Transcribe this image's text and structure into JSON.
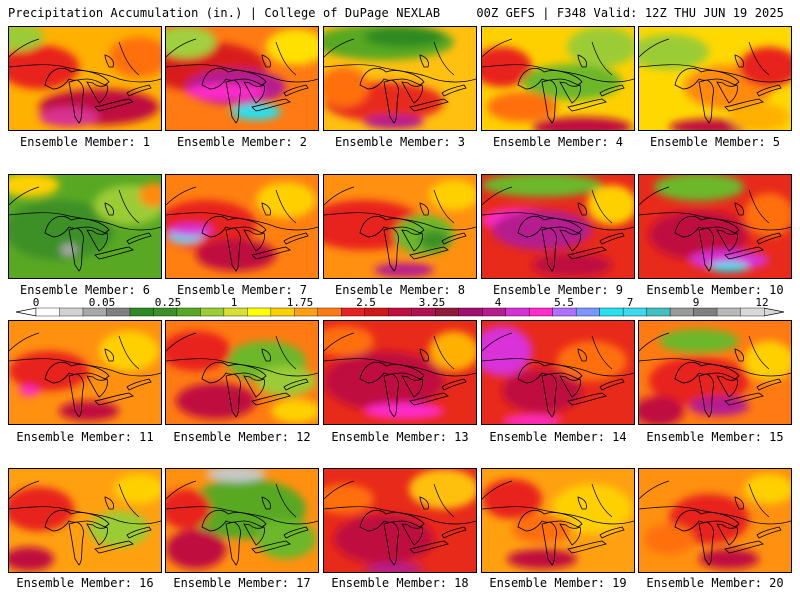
{
  "header": {
    "left": "Precipitation Accumulation (in.) | College of DuPage NEXLAB",
    "right": "00Z GEFS | F348 Valid: 12Z THU JUN 19 2025"
  },
  "members": [
    {
      "label": "Ensemble Member: 1",
      "base": "#ffb000",
      "blobs": [
        [
          "#e8221e",
          30,
          40,
          40,
          22
        ],
        [
          "#c01040",
          90,
          80,
          60,
          18
        ],
        [
          "#ff7010",
          130,
          30,
          30,
          20
        ],
        [
          "#d83090",
          60,
          90,
          30,
          10
        ],
        [
          "#9ccc36",
          10,
          10,
          25,
          14
        ]
      ]
    },
    {
      "label": "Ensemble Member: 2",
      "base": "#ff7a12",
      "blobs": [
        [
          "#d81a1a",
          40,
          40,
          60,
          25
        ],
        [
          "#b51c8f",
          70,
          60,
          50,
          18
        ],
        [
          "#ff2ccc",
          60,
          65,
          40,
          8
        ],
        [
          "#28e0f0",
          90,
          85,
          25,
          8
        ],
        [
          "#a0d040",
          20,
          15,
          30,
          16
        ],
        [
          "#ffe000",
          130,
          20,
          30,
          18
        ]
      ]
    },
    {
      "label": "Ensemble Member: 3",
      "base": "#ffc010",
      "blobs": [
        [
          "#59a824",
          60,
          15,
          70,
          18
        ],
        [
          "#2f8a24",
          80,
          10,
          40,
          10
        ],
        [
          "#e82a1a",
          60,
          75,
          60,
          20
        ],
        [
          "#ff7010",
          20,
          60,
          25,
          20
        ],
        [
          "#b51c8f",
          70,
          95,
          30,
          7
        ]
      ]
    },
    {
      "label": "Ensemble Member: 4",
      "base": "#ffd000",
      "blobs": [
        [
          "#e8221e",
          20,
          40,
          30,
          20
        ],
        [
          "#6cb82c",
          90,
          55,
          50,
          18
        ],
        [
          "#9ccc36",
          120,
          20,
          35,
          20
        ],
        [
          "#c01040",
          100,
          100,
          50,
          10
        ],
        [
          "#ff7010",
          40,
          80,
          35,
          15
        ]
      ]
    },
    {
      "label": "Ensemble Member: 5",
      "base": "#ffd800",
      "blobs": [
        [
          "#9ccc36",
          30,
          25,
          40,
          18
        ],
        [
          "#ff8a10",
          90,
          60,
          45,
          22
        ],
        [
          "#e8221e",
          130,
          40,
          30,
          20
        ],
        [
          "#c01040",
          70,
          100,
          40,
          8
        ],
        [
          "#ffb000",
          120,
          90,
          30,
          14
        ]
      ]
    },
    {
      "label": "Ensemble Member: 6",
      "base": "#59a824",
      "blobs": [
        [
          "#3c9028",
          50,
          55,
          55,
          30
        ],
        [
          "#9ccc36",
          120,
          30,
          35,
          20
        ],
        [
          "#ffd000",
          20,
          10,
          30,
          12
        ],
        [
          "#aaaaaa",
          60,
          75,
          8,
          6
        ],
        [
          "#ff8a10",
          145,
          20,
          15,
          12
        ]
      ]
    },
    {
      "label": "Ensemble Member: 7",
      "base": "#ff8010",
      "blobs": [
        [
          "#e8221e",
          40,
          50,
          50,
          25
        ],
        [
          "#c01040",
          70,
          80,
          40,
          16
        ],
        [
          "#3cd8f0",
          20,
          60,
          18,
          8
        ],
        [
          "#d830d8",
          25,
          55,
          22,
          6
        ],
        [
          "#ffd000",
          120,
          25,
          30,
          18
        ]
      ]
    },
    {
      "label": "Ensemble Member: 8",
      "base": "#ff9010",
      "blobs": [
        [
          "#e8221e",
          40,
          50,
          60,
          25
        ],
        [
          "#6cb82c",
          100,
          60,
          30,
          20
        ],
        [
          "#3c9028",
          110,
          65,
          15,
          10
        ],
        [
          "#ffd000",
          130,
          20,
          25,
          15
        ],
        [
          "#b51c8f",
          80,
          95,
          30,
          7
        ]
      ]
    },
    {
      "label": "Ensemble Member: 9",
      "base": "#e82a1a",
      "blobs": [
        [
          "#6cb82c",
          60,
          10,
          60,
          12
        ],
        [
          "#ff2ccc",
          40,
          45,
          40,
          12
        ],
        [
          "#b51c8f",
          60,
          55,
          50,
          20
        ],
        [
          "#ffd000",
          130,
          30,
          25,
          20
        ],
        [
          "#c01040",
          90,
          90,
          40,
          12
        ]
      ]
    },
    {
      "label": "Ensemble Member: 10",
      "base": "#e82a1a",
      "blobs": [
        [
          "#6cb82c",
          60,
          12,
          45,
          14
        ],
        [
          "#c01040",
          60,
          60,
          50,
          25
        ],
        [
          "#d830d8",
          90,
          85,
          40,
          10
        ],
        [
          "#28e0f0",
          90,
          92,
          20,
          5
        ],
        [
          "#ff7010",
          130,
          40,
          25,
          22
        ]
      ]
    },
    {
      "label": "Ensemble Member: 11",
      "base": "#ff9010",
      "blobs": [
        [
          "#e8221e",
          40,
          50,
          40,
          20
        ],
        [
          "#ffd000",
          120,
          30,
          30,
          20
        ],
        [
          "#c01040",
          80,
          90,
          30,
          10
        ],
        [
          "#ff2ccc",
          20,
          70,
          10,
          5
        ]
      ]
    },
    {
      "label": "Ensemble Member: 12",
      "base": "#ff7a12",
      "blobs": [
        [
          "#6cb82c",
          100,
          40,
          40,
          20
        ],
        [
          "#9ccc36",
          120,
          60,
          30,
          15
        ],
        [
          "#e8221e",
          30,
          30,
          35,
          20
        ],
        [
          "#c01040",
          50,
          80,
          40,
          18
        ],
        [
          "#ffd000",
          130,
          90,
          25,
          12
        ]
      ]
    },
    {
      "label": "Ensemble Member: 13",
      "base": "#e82a1a",
      "blobs": [
        [
          "#c01040",
          60,
          60,
          60,
          30
        ],
        [
          "#ff2ccc",
          80,
          90,
          40,
          8
        ],
        [
          "#ff7010",
          20,
          20,
          30,
          15
        ],
        [
          "#ffb000",
          130,
          30,
          25,
          20
        ]
      ]
    },
    {
      "label": "Ensemble Member: 14",
      "base": "#e82a1a",
      "blobs": [
        [
          "#d830d8",
          20,
          30,
          30,
          25
        ],
        [
          "#c01040",
          60,
          70,
          40,
          22
        ],
        [
          "#ff7010",
          110,
          40,
          35,
          20
        ],
        [
          "#ff2ccc",
          50,
          100,
          30,
          6
        ]
      ]
    },
    {
      "label": "Ensemble Member: 15",
      "base": "#ff7a12",
      "blobs": [
        [
          "#6cb82c",
          60,
          20,
          40,
          12
        ],
        [
          "#e8221e",
          60,
          60,
          50,
          25
        ],
        [
          "#c01040",
          20,
          90,
          25,
          15
        ],
        [
          "#b51c8f",
          80,
          85,
          30,
          10
        ],
        [
          "#ffd000",
          130,
          40,
          25,
          20
        ]
      ]
    },
    {
      "label": "Ensemble Member: 16",
      "base": "#ffa010",
      "blobs": [
        [
          "#e8221e",
          30,
          40,
          35,
          22
        ],
        [
          "#9ccc36",
          110,
          60,
          30,
          18
        ],
        [
          "#c01040",
          20,
          90,
          25,
          12
        ],
        [
          "#ffd000",
          130,
          20,
          25,
          15
        ]
      ]
    },
    {
      "label": "Ensemble Member: 17",
      "base": "#ff9010",
      "blobs": [
        [
          "#59a824",
          80,
          40,
          60,
          30
        ],
        [
          "#c8c8c8",
          70,
          5,
          30,
          8
        ],
        [
          "#6cb82c",
          120,
          70,
          30,
          20
        ],
        [
          "#c01040",
          30,
          80,
          30,
          20
        ],
        [
          "#e8221e",
          20,
          40,
          25,
          20
        ]
      ]
    },
    {
      "label": "Ensemble Member: 18",
      "base": "#e82a1a",
      "blobs": [
        [
          "#ffc010",
          120,
          20,
          35,
          20
        ],
        [
          "#c01040",
          60,
          70,
          50,
          25
        ],
        [
          "#ff7010",
          20,
          30,
          30,
          15
        ],
        [
          "#b51c8f",
          70,
          100,
          30,
          6
        ]
      ]
    },
    {
      "label": "Ensemble Member: 19",
      "base": "#ffa010",
      "blobs": [
        [
          "#e8221e",
          30,
          30,
          30,
          20
        ],
        [
          "#ffd000",
          110,
          40,
          40,
          25
        ],
        [
          "#c01040",
          60,
          90,
          35,
          10
        ],
        [
          "#ff7010",
          60,
          60,
          30,
          15
        ]
      ]
    },
    {
      "label": "Ensemble Member: 20",
      "base": "#ff9010",
      "blobs": [
        [
          "#e8221e",
          70,
          50,
          40,
          25
        ],
        [
          "#ffd000",
          130,
          20,
          25,
          15
        ],
        [
          "#c01040",
          90,
          90,
          30,
          10
        ],
        [
          "#ff7010",
          30,
          70,
          25,
          15
        ]
      ]
    }
  ],
  "colorbar": {
    "labels": [
      "0",
      "0.05",
      "0.25",
      "1",
      "1.75",
      "2.5",
      "3.25",
      "4",
      "5.5",
      "7",
      "9",
      "12"
    ],
    "colors": [
      "#ffffff",
      "#d2d2d2",
      "#a8a8a8",
      "#808080",
      "#2f8a24",
      "#3c9028",
      "#59a824",
      "#9ccc36",
      "#d8e030",
      "#ffff00",
      "#ffd000",
      "#ffa010",
      "#ff7a12",
      "#e8221e",
      "#d01818",
      "#c01040",
      "#b01050",
      "#901838",
      "#a01070",
      "#b51c8f",
      "#d830d8",
      "#ff2ccc",
      "#b070ff",
      "#7898ff",
      "#28e0f0",
      "#3cd8f0",
      "#40c0c0",
      "#9a9a9a",
      "#808080",
      "#b8b8b8",
      "#d8d8d8"
    ]
  }
}
